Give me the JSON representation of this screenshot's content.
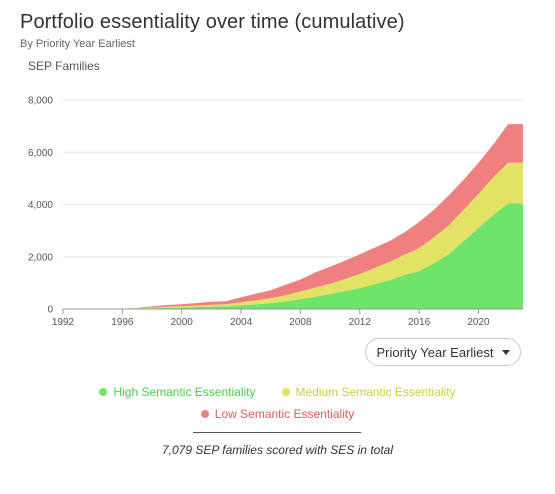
{
  "header": {
    "title": "Portfolio essentiality over time (cumulative)",
    "subtitle": "By Priority Year Earliest"
  },
  "chart_data": {
    "type": "area",
    "stacked": true,
    "title": "Portfolio essentiality over time (cumulative)",
    "subtitle": "By Priority Year Earliest",
    "ylabel": "SEP Families",
    "xlabel": "",
    "xlim": [
      1992,
      2023
    ],
    "ylim": [
      0,
      8000
    ],
    "y_ticks": [
      0,
      2000,
      4000,
      6000,
      8000
    ],
    "y_tick_labels": [
      "0",
      "2,000",
      "4,000",
      "6,000",
      "8,000"
    ],
    "x_ticks": [
      1992,
      1996,
      2000,
      2004,
      2008,
      2012,
      2016,
      2020
    ],
    "grid": "horizontal",
    "legend_placement": "bottom",
    "x": [
      1992,
      1993,
      1994,
      1995,
      1996,
      1997,
      1998,
      1999,
      2000,
      2001,
      2002,
      2003,
      2004,
      2005,
      2006,
      2007,
      2008,
      2009,
      2010,
      2011,
      2012,
      2013,
      2014,
      2015,
      2016,
      2017,
      2018,
      2019,
      2020,
      2021,
      2022,
      2023
    ],
    "series": [
      {
        "name": "High Semantic Essentiality",
        "color": "#6ee46a",
        "values": [
          0,
          0,
          0,
          0,
          5,
          15,
          30,
          45,
          55,
          75,
          90,
          100,
          140,
          180,
          230,
          300,
          380,
          470,
          570,
          690,
          800,
          950,
          1100,
          1300,
          1450,
          1750,
          2100,
          2600,
          3100,
          3600,
          4050,
          4050
        ]
      },
      {
        "name": "Medium Semantic Essentiality",
        "color": "#e2e265",
        "values": [
          0,
          0,
          0,
          0,
          3,
          10,
          25,
          40,
          50,
          60,
          75,
          85,
          120,
          150,
          180,
          230,
          290,
          350,
          400,
          460,
          540,
          620,
          700,
          780,
          880,
          1000,
          1100,
          1200,
          1300,
          1450,
          1550,
          1550
        ]
      },
      {
        "name": "Low Semantic Essentiality",
        "color": "#f08080",
        "values": [
          0,
          0,
          0,
          0,
          4,
          15,
          45,
          70,
          80,
          95,
          115,
          115,
          190,
          250,
          310,
          400,
          460,
          580,
          650,
          700,
          750,
          780,
          800,
          850,
          1000,
          1050,
          1150,
          1150,
          1200,
          1250,
          1479,
          1479
        ]
      }
    ]
  },
  "controls": {
    "dropdown_label": "Priority Year Earliest"
  },
  "legend": {
    "items": [
      {
        "label": "High Semantic Essentiality",
        "color": "#6ee46a",
        "text_color": "#4bcf46"
      },
      {
        "label": "Medium Semantic Essentiality",
        "color": "#e2e265",
        "text_color": "#cfcf3a"
      },
      {
        "label": "Low Semantic Essentiality",
        "color": "#f08080",
        "text_color": "#e05a5a"
      }
    ]
  },
  "footer": {
    "note": "7,079 SEP families scored with SES in total"
  }
}
